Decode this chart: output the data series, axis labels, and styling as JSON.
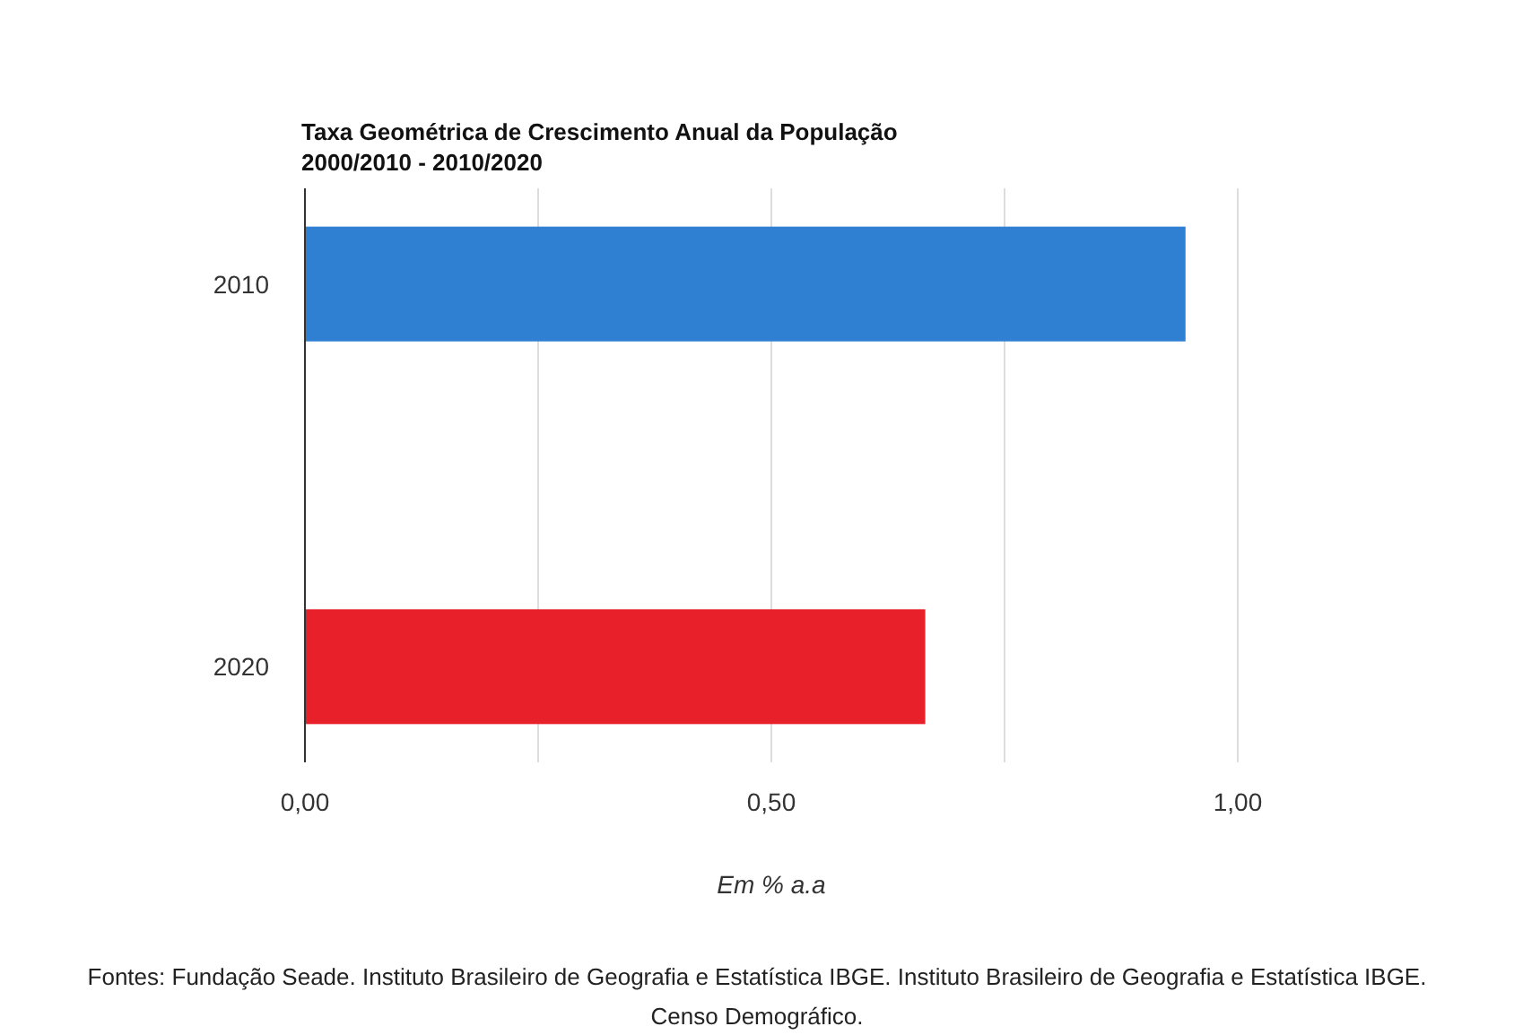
{
  "chart_data": {
    "type": "bar",
    "orientation": "horizontal",
    "title": "Taxa Geométrica de Crescimento Anual da População\n2000/2010 - 2010/2020",
    "xlabel": "Em % a.a",
    "categories": [
      "2010",
      "2020"
    ],
    "values": [
      0.944,
      0.665
    ],
    "colors": [
      "#2f7fd3",
      "#e8202a"
    ],
    "xlim": [
      0,
      1
    ],
    "xticks": [
      {
        "value": 0,
        "label": "0,00"
      },
      {
        "value": 0.25,
        "label": null
      },
      {
        "value": 0.5,
        "label": "0,50"
      },
      {
        "value": 0.75,
        "label": null
      },
      {
        "value": 1,
        "label": "1,00"
      }
    ],
    "grid": "x",
    "annotations": [
      "Fontes: Fundação Seade. Instituto Brasileiro de Geografia e Estatística  IBGE. Instituto Brasileiro de Geografia e Estatística  IBGE. Censo Demográfico."
    ]
  }
}
